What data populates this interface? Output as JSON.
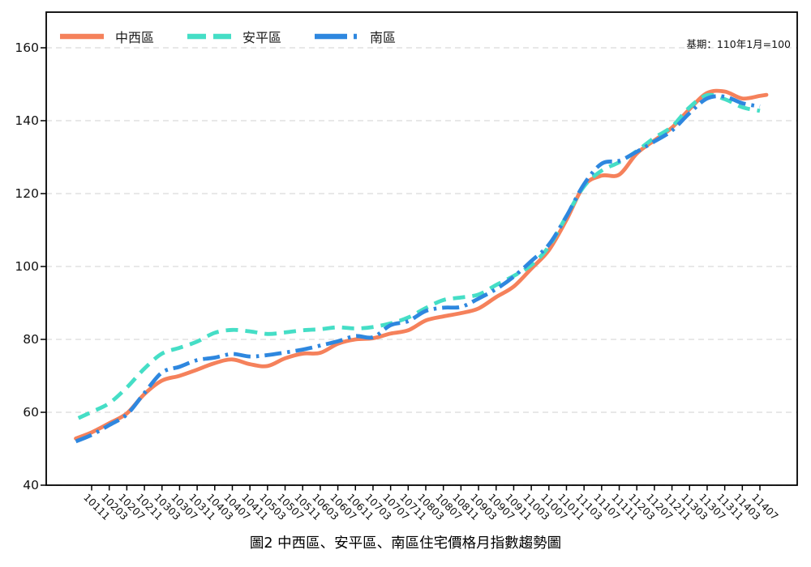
{
  "figure": {
    "title": "圖2 中西區、安平區、南區住宅價格月指數趨勢圖",
    "annotation": "基期：110年1月=100"
  },
  "chart_data": {
    "type": "line",
    "title": "圖2 中西區、安平區、南區住宅價格月指數趨勢圖",
    "annotation": "基期：110年1月=100",
    "xlabel": "",
    "ylabel": "",
    "ylim": [
      40,
      170
    ],
    "y_ticks": [
      40,
      60,
      80,
      100,
      120,
      140,
      160
    ],
    "grid": "horizontal-dashed",
    "legend_position": "top-left-inside",
    "x_tick_labels": [
      "10111",
      "10203",
      "10207",
      "10211",
      "10303",
      "10307",
      "10311",
      "10403",
      "10407",
      "10411",
      "10503",
      "10507",
      "10511",
      "10603",
      "10607",
      "10611",
      "10703",
      "10707",
      "10711",
      "10803",
      "10807",
      "10811",
      "10903",
      "10907",
      "10911",
      "11003",
      "11007",
      "11011",
      "11103",
      "11107",
      "11111",
      "11203",
      "11207",
      "11211",
      "11303",
      "11307",
      "11311",
      "11403",
      "11407"
    ],
    "series": [
      {
        "name": "中西區",
        "color": "#F5815B",
        "style": "solid",
        "values": [
          54.5,
          57.0,
          59.7,
          65.0,
          68.7,
          70.0,
          71.7,
          73.5,
          74.5,
          73.2,
          72.7,
          74.8,
          76.1,
          76.3,
          78.8,
          80.0,
          80.3,
          81.6,
          82.5,
          85.2,
          86.3,
          87.2,
          88.5,
          91.6,
          94.5,
          99.4,
          104.5,
          112.8,
          122.2,
          124.9,
          125.2,
          131.0,
          134.6,
          138.1,
          143.2,
          147.6,
          148.0,
          146.1,
          146.8
        ],
        "start_stub": {
          "dx": -0.9,
          "value": 52.8
        },
        "end_stub": {
          "dx": 0.37,
          "value": 147.1
        }
      },
      {
        "name": "安平區",
        "color": "#45DEC6",
        "style": "dashed",
        "values": [
          60.1,
          62.5,
          66.8,
          72.0,
          76.1,
          77.7,
          79.4,
          81.8,
          82.6,
          82.2,
          81.5,
          81.9,
          82.5,
          82.8,
          83.3,
          83.0,
          83.4,
          84.4,
          86.0,
          88.6,
          90.8,
          91.5,
          92.3,
          94.9,
          97.4,
          100.4,
          105.5,
          113.8,
          122.0,
          126.3,
          128.6,
          131.7,
          135.3,
          138.4,
          143.7,
          147.0,
          145.9,
          143.7,
          142.7
        ],
        "start_stub": {
          "dx": -0.75,
          "value": 58.4
        }
      },
      {
        "name": "南區",
        "color": "#2E87DF",
        "style": "dash-dot",
        "values": [
          53.8,
          56.5,
          59.4,
          65.3,
          70.9,
          72.5,
          74.3,
          75.0,
          76.0,
          75.3,
          75.7,
          76.4,
          77.2,
          78.3,
          79.5,
          80.9,
          80.6,
          83.9,
          85.0,
          87.8,
          88.7,
          88.9,
          91.2,
          93.8,
          97.2,
          101.5,
          106.0,
          113.8,
          122.6,
          128.2,
          129.0,
          131.5,
          134.3,
          137.3,
          142.1,
          146.1,
          146.6,
          144.8,
          143.9
        ],
        "start_stub": {
          "dx": -0.9,
          "value": 52.0
        }
      }
    ]
  }
}
